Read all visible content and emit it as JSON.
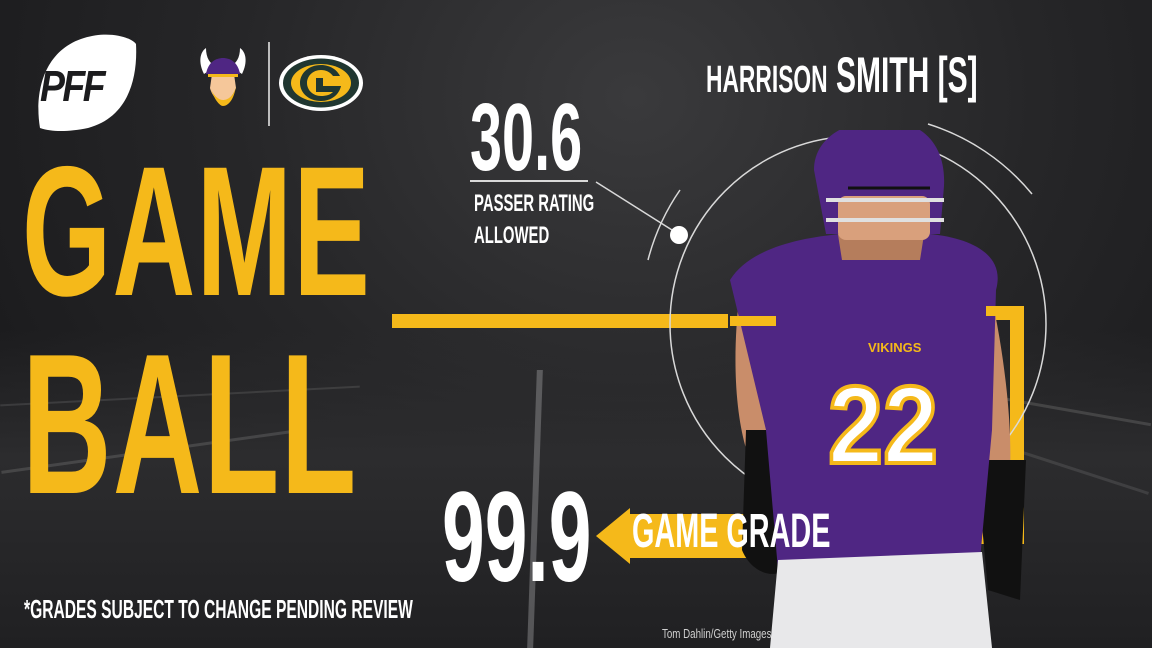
{
  "brand": {
    "logo_text": "PFF"
  },
  "teams": {
    "left_icon": "vikings-logo-icon",
    "right_icon": "packers-logo-icon",
    "right_letter": "G"
  },
  "title": {
    "line1": "GAME",
    "line2": "BALL"
  },
  "player": {
    "first_name": "HARRISON",
    "last_name": "SMITH",
    "position": "[S]",
    "jersey_number": "22",
    "team_wordmark": "VIKINGS"
  },
  "stat_top": {
    "value": "30.6",
    "label_line1": "PASSER RATING",
    "label_line2": "ALLOWED"
  },
  "stat_main": {
    "value": "99.9",
    "label": "GAME GRADE"
  },
  "disclaimer": "*GRADES SUBJECT TO CHANGE PENDING REVIEW",
  "photo_credit": "Tom Dahlin/Getty Images",
  "colors": {
    "accent": "#f5b91a",
    "vikings_purple": "#4f2683",
    "packers_green": "#203731",
    "background": "#1c1c1e"
  }
}
